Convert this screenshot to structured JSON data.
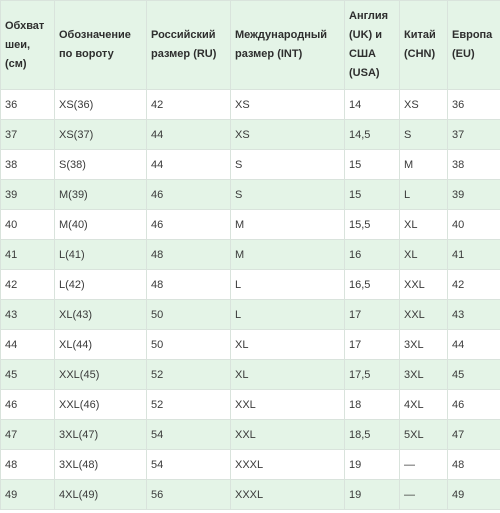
{
  "table": {
    "headers": [
      "Обхват шеи, (см)",
      "Обозначение по вороту",
      "Российский размер (RU)",
      "Международный размер (INT)",
      "Англия (UK) и США (USA)",
      "Китай (CHN)",
      "Европа (EU)"
    ],
    "rows": [
      [
        "36",
        "XS(36)",
        "42",
        "XS",
        "14",
        "XS",
        "36"
      ],
      [
        "37",
        "XS(37)",
        "44",
        "XS",
        "14,5",
        "S",
        "37"
      ],
      [
        "38",
        "S(38)",
        "44",
        "S",
        "15",
        "M",
        "38"
      ],
      [
        "39",
        "M(39)",
        "46",
        "S",
        "15",
        "L",
        "39"
      ],
      [
        "40",
        "M(40)",
        "46",
        "M",
        "15,5",
        "XL",
        "40"
      ],
      [
        "41",
        "L(41)",
        "48",
        "M",
        "16",
        "XL",
        "41"
      ],
      [
        "42",
        "L(42)",
        "48",
        "L",
        "16,5",
        "XXL",
        "42"
      ],
      [
        "43",
        "XL(43)",
        "50",
        "L",
        "17",
        "XXL",
        "43"
      ],
      [
        "44",
        "XL(44)",
        "50",
        "XL",
        "17",
        "3XL",
        "44"
      ],
      [
        "45",
        "XXL(45)",
        "52",
        "XL",
        "17,5",
        "3XL",
        "45"
      ],
      [
        "46",
        "XXL(46)",
        "52",
        "XXL",
        "18",
        "4XL",
        "46"
      ],
      [
        "47",
        "3XL(47)",
        "54",
        "XXL",
        "18,5",
        "5XL",
        "47"
      ],
      [
        "48",
        "3XL(48)",
        "54",
        "XXXL",
        "19",
        "—",
        "48"
      ],
      [
        "49",
        "4XL(49)",
        "56",
        "XXXL",
        "19",
        "—",
        "49"
      ]
    ]
  },
  "colors": {
    "header_bg": "#e4f4e7",
    "stripe_bg": "#e4f4e7",
    "border": "#d9e3dc",
    "text": "#3a3a3a"
  }
}
